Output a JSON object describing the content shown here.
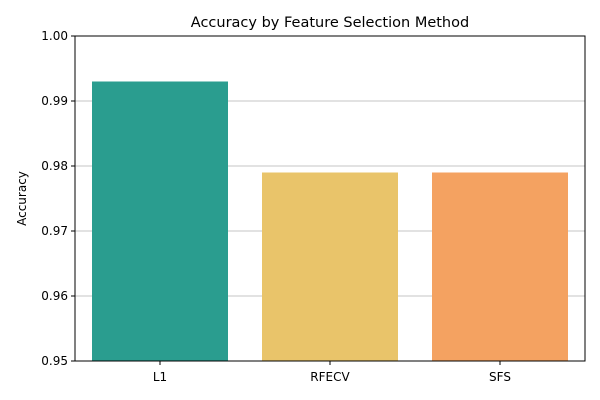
{
  "chart_data": {
    "type": "bar",
    "title": "Accuracy by Feature Selection Method",
    "xlabel": "",
    "ylabel": "Accuracy",
    "categories": [
      "L1",
      "RFECV",
      "SFS"
    ],
    "values": [
      0.993,
      0.979,
      0.979
    ],
    "colors": [
      "#2a9d8f",
      "#e9c46a",
      "#f4a261"
    ],
    "ylim": [
      0.95,
      1.0
    ],
    "yticks": [
      "0.95",
      "0.96",
      "0.97",
      "0.98",
      "0.99",
      "1.00"
    ],
    "grid": "y",
    "legend": "none"
  }
}
